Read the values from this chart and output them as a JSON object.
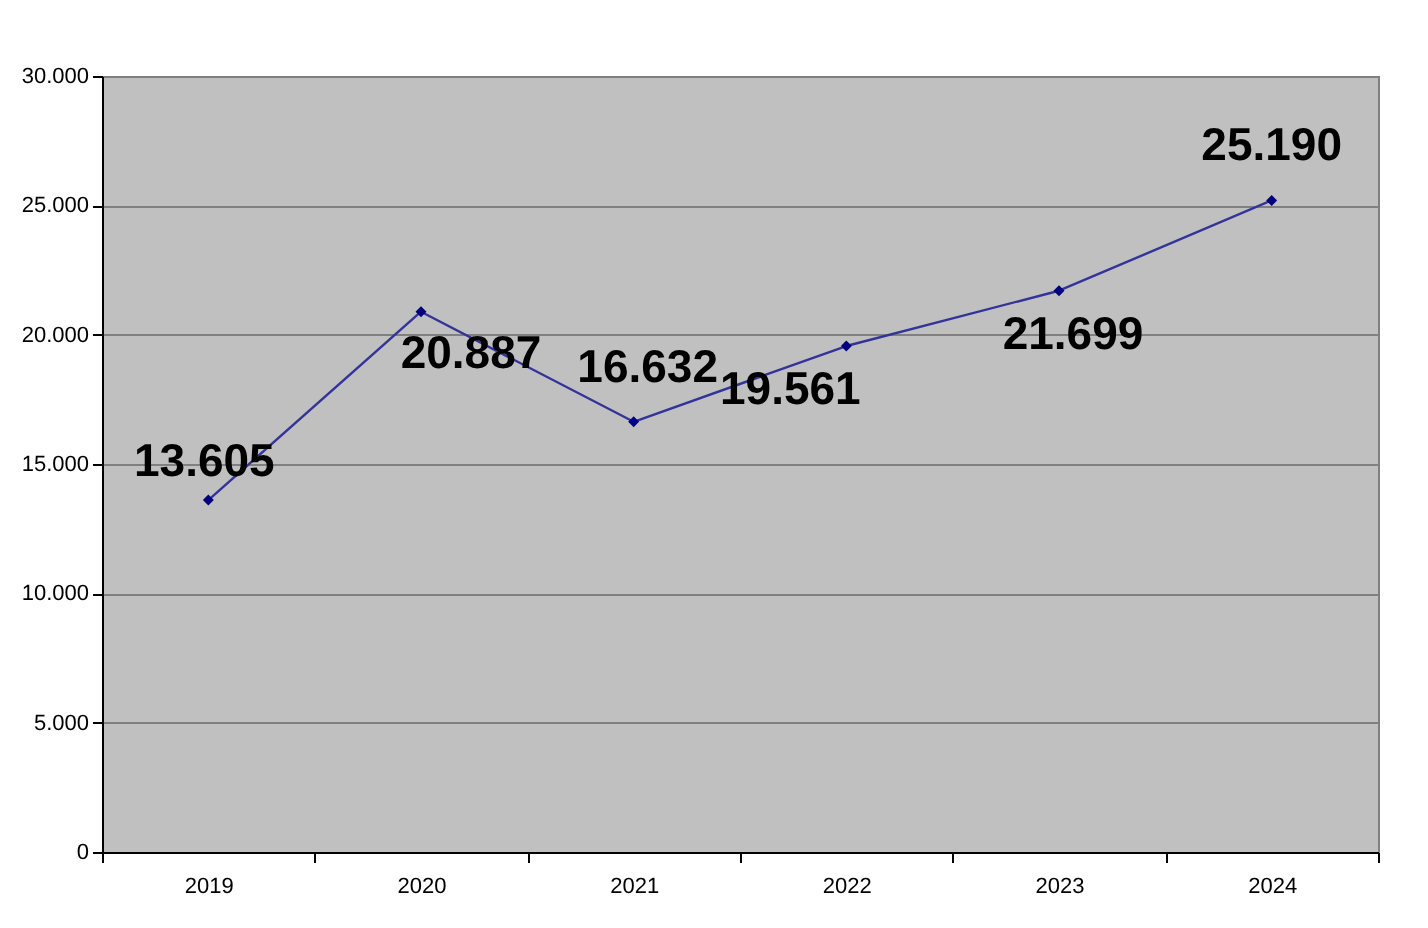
{
  "chart_data": {
    "type": "line",
    "categories": [
      "2019",
      "2020",
      "2021",
      "2022",
      "2023",
      "2024"
    ],
    "series": [
      {
        "color": "#333399",
        "values": [
          13605,
          20887,
          16632,
          19561,
          21699,
          25190
        ],
        "value_labels": [
          "13.605",
          "20.887",
          "16.632",
          "19.561",
          "21.699",
          "25.190"
        ]
      }
    ],
    "ylim": [
      0,
      30000
    ],
    "yticks": [
      {
        "value": 0,
        "label": "0"
      },
      {
        "value": 5000,
        "label": "5.000"
      },
      {
        "value": 10000,
        "label": "10.000"
      },
      {
        "value": 15000,
        "label": "15.000"
      },
      {
        "value": 20000,
        "label": "20.000"
      },
      {
        "value": 25000,
        "label": "25.000"
      },
      {
        "value": 30000,
        "label": "30.000"
      }
    ],
    "grid": "y",
    "marker": "diamond",
    "line_style": "solid"
  }
}
